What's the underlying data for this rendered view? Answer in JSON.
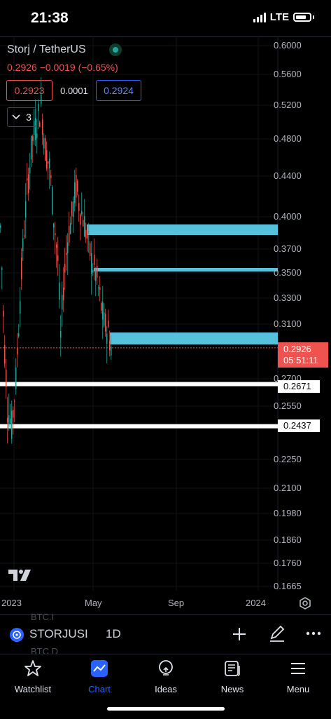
{
  "status": {
    "time": "21:38",
    "network": "LTE"
  },
  "header": {
    "symbol_title": "Storj / TetherUS",
    "price_line": "0.2926  −0.0019 (−0.65%)",
    "bid": "0.2923",
    "spread": "0.0001",
    "ask": "0.2924",
    "indicators_count": "3"
  },
  "chart": {
    "price_axis": [
      "0.6000",
      "0.5600",
      "0.5200",
      "0.4800",
      "0.4400",
      "0.4000",
      "0.3700",
      "0.3500",
      "0.3300",
      "0.3100",
      "0.2926",
      "0.2700",
      "0.2671",
      "0.2550",
      "0.2437",
      "0.2250",
      "0.2100",
      "0.1980",
      "0.1860",
      "0.1760",
      "0.1665"
    ],
    "current_price": "0.2926",
    "countdown": "05:51:11",
    "support_levels": [
      "0.2671",
      "0.2437"
    ],
    "time_axis": [
      "2023",
      "May",
      "Sep",
      "2024"
    ],
    "colors": {
      "up": "#26a69a",
      "down": "#ef5350",
      "zone": "#56c1dd",
      "background": "#000000"
    }
  },
  "toolbar": {
    "symbol": "STORJUSI",
    "interval": "1D",
    "ghost_1": "BTC.I",
    "ghost_2": "BTC.D"
  },
  "nav": {
    "items": [
      {
        "label": "Watchlist",
        "icon": "star-icon"
      },
      {
        "label": "Chart",
        "icon": "chart-icon",
        "active": true
      },
      {
        "label": "Ideas",
        "icon": "lightbulb-icon"
      },
      {
        "label": "News",
        "icon": "newspaper-icon"
      },
      {
        "label": "Menu",
        "icon": "hamburger-icon"
      }
    ]
  }
}
